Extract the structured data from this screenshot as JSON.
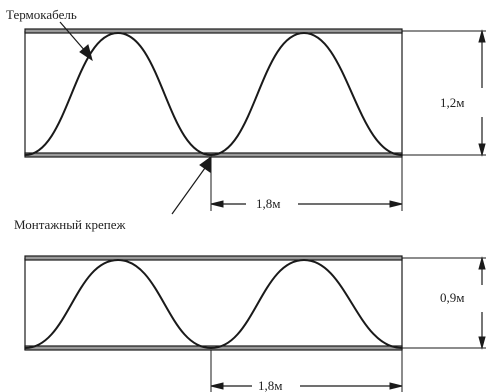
{
  "labels": {
    "cable": "Термокабель",
    "mount": "Монтажный крепеж"
  },
  "diagrams": [
    {
      "height": "1,2м",
      "pitch": "1,8м"
    },
    {
      "height": "0,9м",
      "pitch": "1,8м"
    }
  ],
  "colors": {
    "stroke": "#1a1a1a",
    "rail": "#555555"
  }
}
